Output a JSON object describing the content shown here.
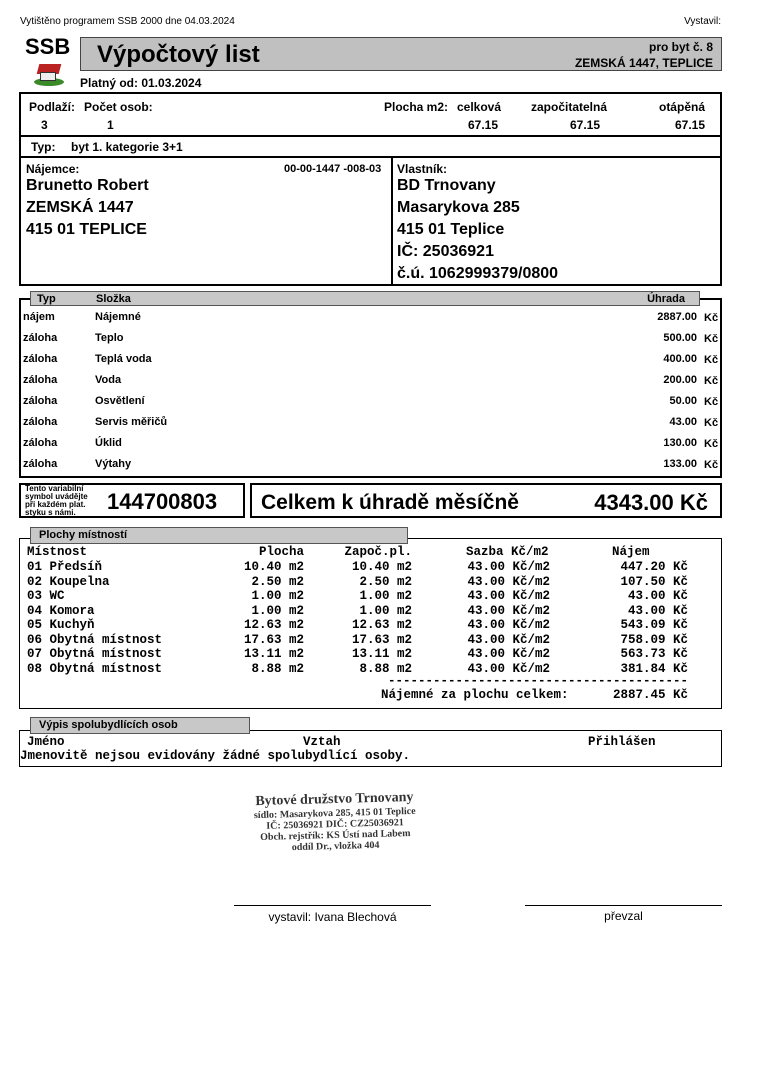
{
  "top": {
    "printed": "Vytištěno programem SSB 2000 dne 04.03.2024",
    "issuer_label": "Vystavil:"
  },
  "header": {
    "logo": "SSB",
    "title": "Výpočtový list",
    "unit": "pro byt č. 8",
    "address": "ZEMSKÁ 1447, TEPLICE",
    "valid_from": "Platný od: 01.03.2024"
  },
  "info": {
    "floor_label": "Podlaží:",
    "floor": "3",
    "persons_label": "Počet osob:",
    "persons": "1",
    "area_label": "Plocha m2:",
    "total_label": "celková",
    "total": "67.15",
    "counted_label": "započitatelná",
    "counted": "67.15",
    "heated_label": "otápěná",
    "heated": "67.15",
    "type_label": "Typ:",
    "type": "byt 1. kategorie 3+1"
  },
  "tenant": {
    "label": "Nájemce:",
    "id": "00-00-1447 -008-03",
    "name": "Brunetto Robert",
    "street": "ZEMSKÁ 1447",
    "city": "415 01 TEPLICE"
  },
  "owner": {
    "label": "Vlastník:",
    "name": "BD Trnovany",
    "street": "Masarykova 285",
    "city": "415 01 Teplice",
    "ico": "IČ: 25036921",
    "account": "č.ú. 1062999379/0800"
  },
  "charges": {
    "headers": [
      "Typ",
      "Složka",
      "Úhrada"
    ],
    "currency": "Kč",
    "rows": [
      [
        "nájem",
        "Nájemné",
        "2887.00"
      ],
      [
        "záloha",
        "Teplo",
        "500.00"
      ],
      [
        "záloha",
        "Teplá voda",
        "400.00"
      ],
      [
        "záloha",
        "Voda",
        "200.00"
      ],
      [
        "záloha",
        "Osvětlení",
        "50.00"
      ],
      [
        "záloha",
        "Servis měřičů",
        "43.00"
      ],
      [
        "záloha",
        "Úklid",
        "130.00"
      ],
      [
        "záloha",
        "Výtahy",
        "133.00"
      ]
    ]
  },
  "payment": {
    "vs_note": [
      "Tento variabilní",
      "symbol uvádějte",
      "při každém plat.",
      "styku s námi."
    ],
    "vs": "144700803",
    "total_label": "Celkem k úhradě měsíčně",
    "total": "4343.00 Kč"
  },
  "rooms": {
    "title": "Plochy místností",
    "headers": [
      "Místnost",
      "Plocha",
      "Započ.pl.",
      "Sazba Kč/m2",
      "Nájem"
    ],
    "rows": [
      [
        "01 Předsíň",
        "10.40 m2",
        "10.40 m2",
        "43.00 Kč/m2",
        "447.20 Kč"
      ],
      [
        "02 Koupelna",
        "2.50 m2",
        "2.50 m2",
        "43.00 Kč/m2",
        "107.50 Kč"
      ],
      [
        "03 WC",
        "1.00 m2",
        "1.00 m2",
        "43.00 Kč/m2",
        "43.00 Kč"
      ],
      [
        "04 Komora",
        "1.00 m2",
        "1.00 m2",
        "43.00 Kč/m2",
        "43.00 Kč"
      ],
      [
        "05 Kuchyň",
        "12.63 m2",
        "12.63 m2",
        "43.00 Kč/m2",
        "543.09 Kč"
      ],
      [
        "06 Obytná místnost",
        "17.63 m2",
        "17.63 m2",
        "43.00 Kč/m2",
        "758.09 Kč"
      ],
      [
        "07 Obytná místnost",
        "13.11 m2",
        "13.11 m2",
        "43.00 Kč/m2",
        "563.73 Kč"
      ],
      [
        "08 Obytná místnost",
        "8.88 m2",
        "8.88 m2",
        "43.00 Kč/m2",
        "381.84 Kč"
      ]
    ],
    "divider": "----------------------------------------",
    "sum_label": "Nájemné za plochu celkem:",
    "sum": "2887.45 Kč"
  },
  "cohab": {
    "title": "Výpis spolubydlících osob",
    "headers": [
      "Jméno",
      "Vztah",
      "Přihlášen"
    ],
    "note": "Jmenovitě nejsou evidovány žádné spolubydlící osoby."
  },
  "stamp": [
    "Bytové družstvo Trnovany",
    "sídlo: Masarykova 285, 415 01 Teplice",
    "IČ: 25036921 DIČ: CZ25036921",
    "Obch. rejstřík: KS Ústí nad Labem",
    "oddíl Dr., vložka 404"
  ],
  "signatures": {
    "issued": "vystavil: Ivana Blechová",
    "received": "převzal"
  }
}
